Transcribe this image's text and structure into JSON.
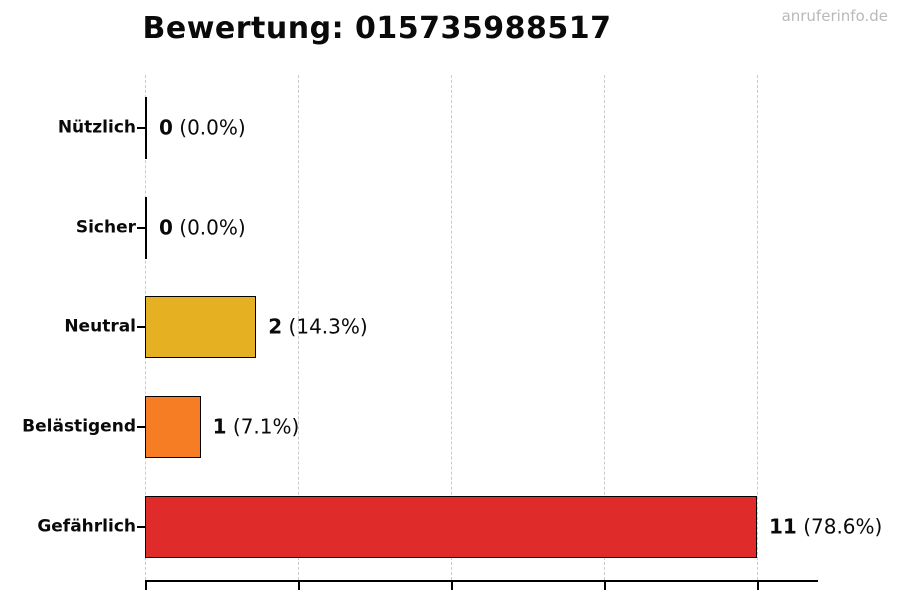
{
  "page": {
    "watermark": "anruferinfo.de"
  },
  "chart_data": {
    "type": "bar",
    "orientation": "horizontal",
    "title": "Bewertung: 015735988517",
    "categories": [
      "Nützlich",
      "Sicher",
      "Neutral",
      "Belästigend",
      "Gefährlich"
    ],
    "values": [
      0,
      0,
      2,
      1,
      11
    ],
    "count_labels": [
      "0",
      "0",
      "2",
      "1",
      "11"
    ],
    "percent_labels": [
      "(0.0%)",
      "(0.0%)",
      "(14.3%)",
      "(7.1%)",
      "(78.6%)"
    ],
    "bar_colors": [
      null,
      null,
      "#e5b123",
      "#f67d23",
      "#e02b2b"
    ],
    "bar_border_color": "#000000",
    "gridline_values": [
      0,
      2.75,
      5.5,
      8.25,
      11
    ],
    "xlim": [
      0,
      12.1
    ],
    "grid": true,
    "legend": false,
    "xlabel": "",
    "ylabel": ""
  }
}
